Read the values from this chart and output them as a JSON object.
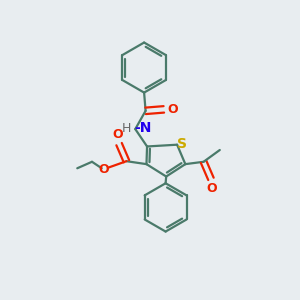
{
  "bg_color": "#e8edf0",
  "bond_color": "#4a7a6a",
  "O_color": "#ee2200",
  "N_color": "#2200ee",
  "S_color": "#ccaa00",
  "H_color": "#666666",
  "line_width": 1.6,
  "figsize": [
    3.0,
    3.0
  ],
  "dpi": 100,
  "xlim": [
    0,
    10
  ],
  "ylim": [
    0,
    10
  ]
}
